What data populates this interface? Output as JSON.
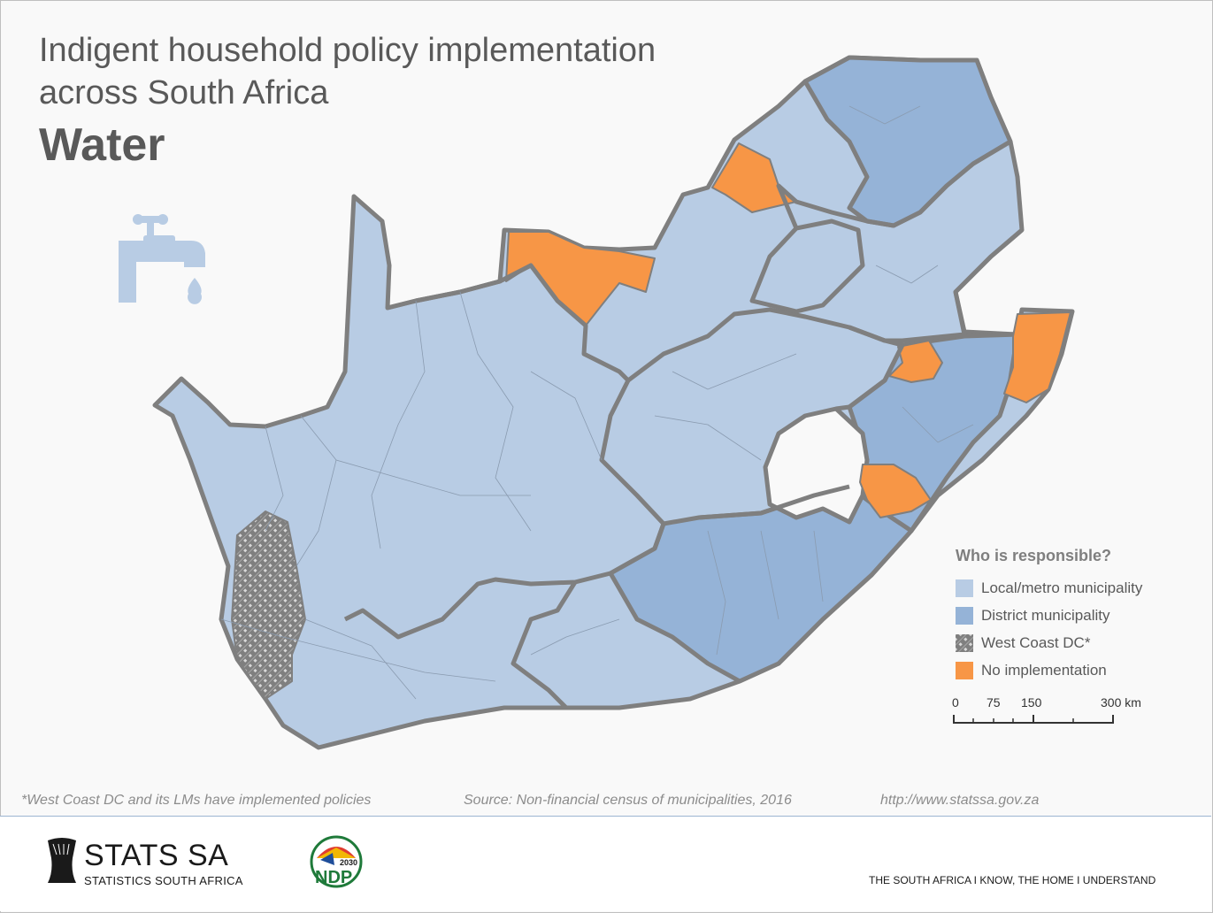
{
  "header": {
    "title_line1": "Indigent household policy implementation",
    "title_line2": "across South Africa",
    "subtitle": "Water"
  },
  "icons": {
    "tap": "water-tap-icon",
    "logo": "stats-sa-logo",
    "ndp": "ndp-2030-logo"
  },
  "legend": {
    "title": "Who is responsible?",
    "items": [
      {
        "label": "Local/metro municipality",
        "color": "#b8cce4"
      },
      {
        "label": "District municipality",
        "color": "#95b3d7"
      },
      {
        "label": "West Coast DC*",
        "color": "#d9d9d9",
        "pattern": "hatched"
      },
      {
        "label": "No implementation",
        "color": "#f79646"
      }
    ]
  },
  "scale_bar": {
    "labels": [
      "0",
      "75",
      "150",
      "300 km"
    ],
    "values_km": [
      0,
      75,
      150,
      300
    ]
  },
  "footnotes": {
    "west_coast": "*West Coast DC and its LMs have implemented policies",
    "source": "Source: Non-financial census of municipalities, 2016",
    "url": "http://www.statssa.gov.za"
  },
  "footer": {
    "org_name": "STATS SA",
    "org_full": "STATISTICS SOUTH AFRICA",
    "ndp_year": "2030",
    "ndp_text": "NDP",
    "tagline": "THE SOUTH AFRICA I KNOW, THE HOME I UNDERSTAND"
  },
  "colors": {
    "local": "#b8cce4",
    "district": "#95b3d7",
    "no_implementation": "#f79646",
    "border": "#7f7f7f"
  }
}
